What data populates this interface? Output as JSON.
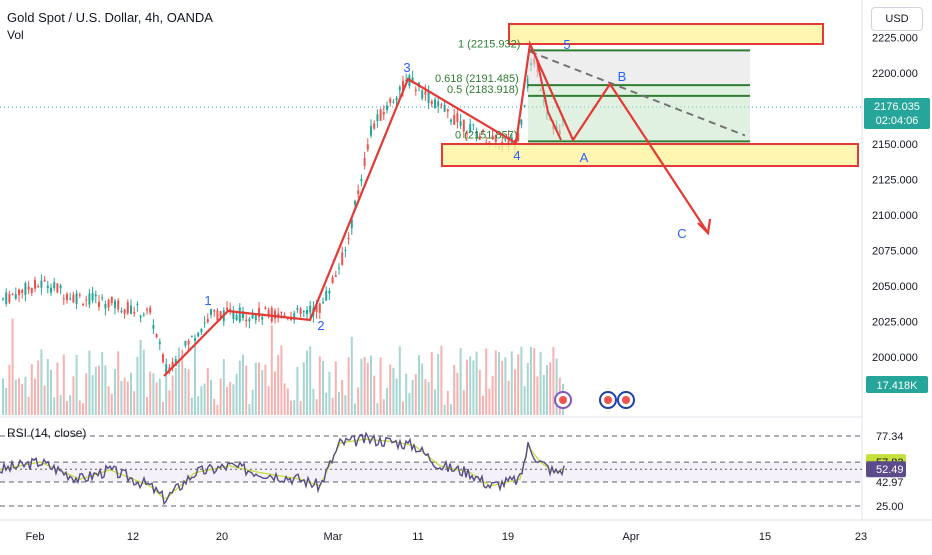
{
  "header": {
    "title": "Gold Spot / U.S. Dollar, 4h, OANDA",
    "volume_label": "Vol",
    "currency": "USD"
  },
  "price_tags": {
    "last": "2176.035",
    "countdown": "02:04:06",
    "volume": "17.418K"
  },
  "rsi_panel": {
    "title": "RSI (14, close)",
    "tag_upper": "57.83",
    "tag_lower": "52.49"
  },
  "colors": {
    "up": "#26a69a",
    "down": "#ef5350",
    "wave": "#e53935",
    "label": "#2962ff",
    "fib": "#2e7d32",
    "zone": "#fff59d",
    "rsi": "#5b4b8a",
    "rsi_ma": "#c6e03b"
  },
  "chart_data": {
    "type": "candlestick",
    "title": "Gold Spot / U.S. Dollar, 4h, OANDA",
    "x_ticks": [
      "Feb",
      "12",
      "20",
      "Mar",
      "11",
      "19",
      "Apr",
      "15",
      "23"
    ],
    "y_ticks": [
      2000.0,
      2025.0,
      2050.0,
      2075.0,
      2100.0,
      2125.0,
      2150.0,
      2175.0,
      2200.0,
      2225.0
    ],
    "ylim": [
      1985,
      2235
    ],
    "last_price": 2176.035,
    "fib_levels": [
      {
        "ratio": "1",
        "price": 2215.932,
        "label": "1 (2215.932)"
      },
      {
        "ratio": "0.618",
        "price": 2191.485,
        "label": "0.618 (2191.485)"
      },
      {
        "ratio": "0.5",
        "price": 2183.918,
        "label": "0.5 (2183.918)"
      },
      {
        "ratio": "0",
        "price": 2151.857,
        "label": "0 (2151.857)"
      }
    ],
    "waves": [
      {
        "label": "1",
        "price": 2033
      },
      {
        "label": "2",
        "price": 2028
      },
      {
        "label": "3",
        "price": 2195
      },
      {
        "label": "4",
        "price": 2150
      },
      {
        "label": "5",
        "price": 2218
      },
      {
        "label": "A",
        "price": 2151
      },
      {
        "label": "B",
        "price": 2190
      },
      {
        "label": "C",
        "price": 2085
      }
    ],
    "zones": [
      {
        "from": 2217,
        "to": 2229
      },
      {
        "from": 2135,
        "to": 2151
      }
    ],
    "rsi_ticks": [
      77.34,
      57.83,
      52.49,
      42.97,
      25.0
    ]
  }
}
